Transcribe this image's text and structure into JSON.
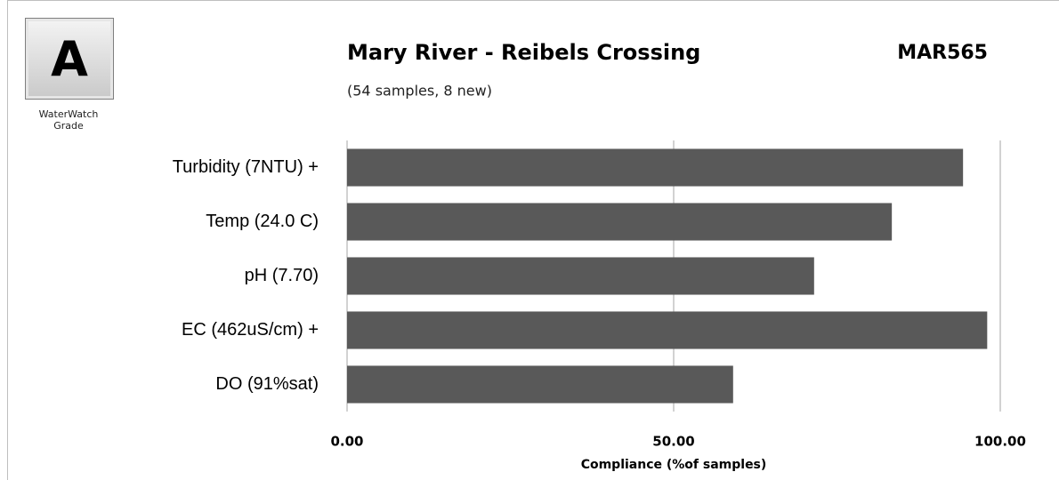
{
  "chart_data": {
    "type": "bar",
    "orientation": "horizontal",
    "title": "Mary River - Reibels Crossing",
    "code": "MAR565",
    "subtitle": "(54 samples, 8 new)",
    "grade": "A",
    "grade_label": "WaterWatch Grade",
    "categories": [
      "Turbidity (7NTU) +",
      "Temp (24.0 C)",
      "pH (7.70)",
      "EC (462uS/cm) +",
      "DO (91%sat)"
    ],
    "values": [
      94.3,
      83.4,
      71.5,
      98.0,
      59.1
    ],
    "color": "#595959",
    "xlabel": "Compliance (%of samples)",
    "xlim": [
      0,
      100
    ],
    "xticks": [
      {
        "value": 0,
        "label": "0.00"
      },
      {
        "value": 50,
        "label": "50.00"
      },
      {
        "value": 100,
        "label": "100.00"
      }
    ],
    "grid": true
  }
}
